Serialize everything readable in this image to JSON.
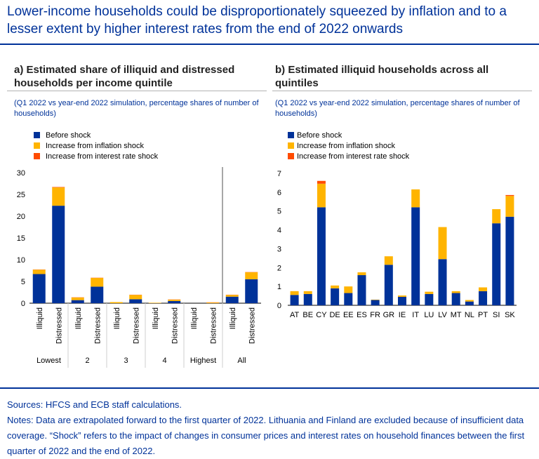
{
  "title": "Lower-income households could be disproportionately squeezed by inflation and to a lesser extent by higher interest rates from the end of 2022 onwards",
  "colors": {
    "before": "#003299",
    "inflation": "#ffb400",
    "interest": "#ff4b00",
    "accent": "#003299"
  },
  "legend_labels": {
    "before": "Before shock",
    "inflation": "Increase from inflation shock",
    "interest": "Increase from interest rate shock"
  },
  "panel_a": {
    "title": "a) Estimated share of illiquid and distressed households per income quintile",
    "subtitle": "(Q1 2022 vs year-end 2022 simulation, percentage shares of number of households)"
  },
  "panel_b": {
    "title": "b) Estimated illiquid households across all quintiles",
    "subtitle": "(Q1 2022 vs year-end 2022 simulation, percentage shares of number of households)"
  },
  "chart_data": [
    {
      "type": "bar",
      "stacked": true,
      "title": "a) Estimated share of illiquid and distressed households per income quintile",
      "ylim": [
        0,
        30
      ],
      "yticks": [
        "0",
        "5",
        "10",
        "15",
        "20",
        "25",
        "30"
      ],
      "categories": [
        "Illiquid",
        "Distressed",
        "Illiquid",
        "Distressed",
        "Illiquid",
        "Distressed",
        "Illiquid",
        "Distressed",
        "Illiquid",
        "Distressed",
        "Illiquid",
        "Distressed"
      ],
      "groups": [
        "Lowest",
        "2",
        "3",
        "4",
        "Highest",
        "All"
      ],
      "series": [
        {
          "name": "Before shock",
          "values": [
            6.7,
            22.4,
            0.7,
            3.8,
            0.0,
            0.9,
            0.0,
            0.5,
            0.0,
            0.0,
            1.5,
            5.5
          ]
        },
        {
          "name": "Increase from inflation shock",
          "values": [
            1.0,
            4.2,
            0.6,
            2.0,
            0.25,
            1.0,
            0.1,
            0.3,
            0.0,
            0.15,
            0.4,
            1.6
          ]
        },
        {
          "name": "Increase from interest rate shock",
          "values": [
            0.05,
            0.1,
            0.05,
            0.05,
            0.0,
            0.05,
            0.0,
            0.05,
            0.0,
            0.05,
            0.05,
            0.05
          ]
        }
      ]
    },
    {
      "type": "bar",
      "stacked": true,
      "title": "b) Estimated illiquid households across all quintiles",
      "ylim": [
        0,
        7
      ],
      "yticks": [
        "0",
        "1",
        "2",
        "3",
        "4",
        "5",
        "6",
        "7"
      ],
      "categories": [
        "AT",
        "BE",
        "CY",
        "DE",
        "EE",
        "ES",
        "FR",
        "GR",
        "IE",
        "IT",
        "LU",
        "LV",
        "MT",
        "NL",
        "PT",
        "SI",
        "SK"
      ],
      "series": [
        {
          "name": "Before shock",
          "values": [
            0.55,
            0.6,
            5.2,
            0.9,
            0.65,
            1.6,
            0.28,
            2.15,
            0.45,
            5.2,
            0.6,
            2.45,
            0.65,
            0.2,
            0.75,
            4.35,
            4.7
          ]
        },
        {
          "name": "Increase from inflation shock",
          "values": [
            0.2,
            0.15,
            1.25,
            0.15,
            0.35,
            0.15,
            0.02,
            0.45,
            0.07,
            0.95,
            0.12,
            1.7,
            0.1,
            0.08,
            0.2,
            0.75,
            1.1
          ]
        },
        {
          "name": "Increase from interest rate shock",
          "values": [
            0.0,
            0.0,
            0.15,
            0.0,
            0.0,
            0.0,
            0.0,
            0.0,
            0.0,
            0.0,
            0.0,
            0.0,
            0.0,
            0.0,
            0.0,
            0.0,
            0.05
          ]
        }
      ]
    }
  ],
  "notes": {
    "sources": "Sources: HFCS and ECB staff calculations.",
    "notes": "Notes: Data are extrapolated forward to the first quarter of 2022. Lithuania and Finland are excluded because of insufficient data coverage. “Shock” refers to the impact of changes in consumer prices and interest rates on household finances between the first quarter of 2022 and the end of 2022."
  }
}
